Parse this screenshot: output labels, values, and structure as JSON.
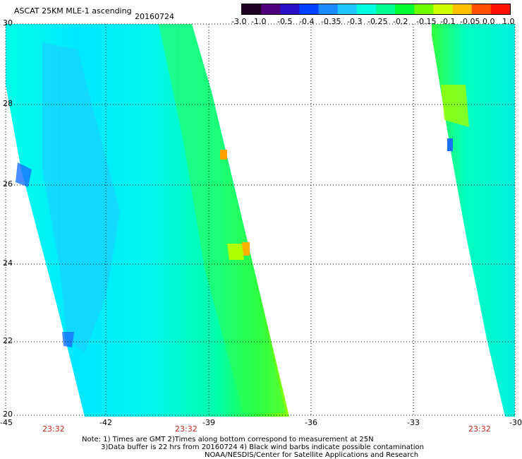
{
  "header": {
    "title": "ASCAT 25KM MLE-1 ascending",
    "date": "20160724"
  },
  "colorbar": {
    "labels": [
      "-3.0",
      "-1.0",
      "-0.5",
      "-0.4",
      "-0.35",
      "-0.3",
      "-0.25",
      "-0.2",
      "-0.15",
      "-0.1",
      "-0.05",
      "0.0",
      "1.0"
    ],
    "colors": [
      "#200020",
      "#50007a",
      "#2a10c8",
      "#0040ff",
      "#1a8cff",
      "#20c8ff",
      "#00ffe0",
      "#00ff90",
      "#00ff30",
      "#70ff00",
      "#d0ff00",
      "#ffc000",
      "#ff5000",
      "#ff1000"
    ]
  },
  "axes": {
    "lat_labels": [
      "30",
      "28",
      "26",
      "24",
      "22",
      "20"
    ],
    "lon_labels": [
      "-45",
      "-42",
      "-39",
      "-36",
      "-33",
      "-30"
    ],
    "time_labels": [
      "23:32",
      "23:32",
      "23:32"
    ]
  },
  "notes": {
    "line1": "Note: 1) Times are GMT 2)Times along bottom correspond to measurement at 25N",
    "line2": "3)Data buffer is 22 hrs from 20160724 4) Black wind barbs indicate possible contamination",
    "line3": "NOAA/NESDIS/Center for Satellite Applications and Research"
  }
}
